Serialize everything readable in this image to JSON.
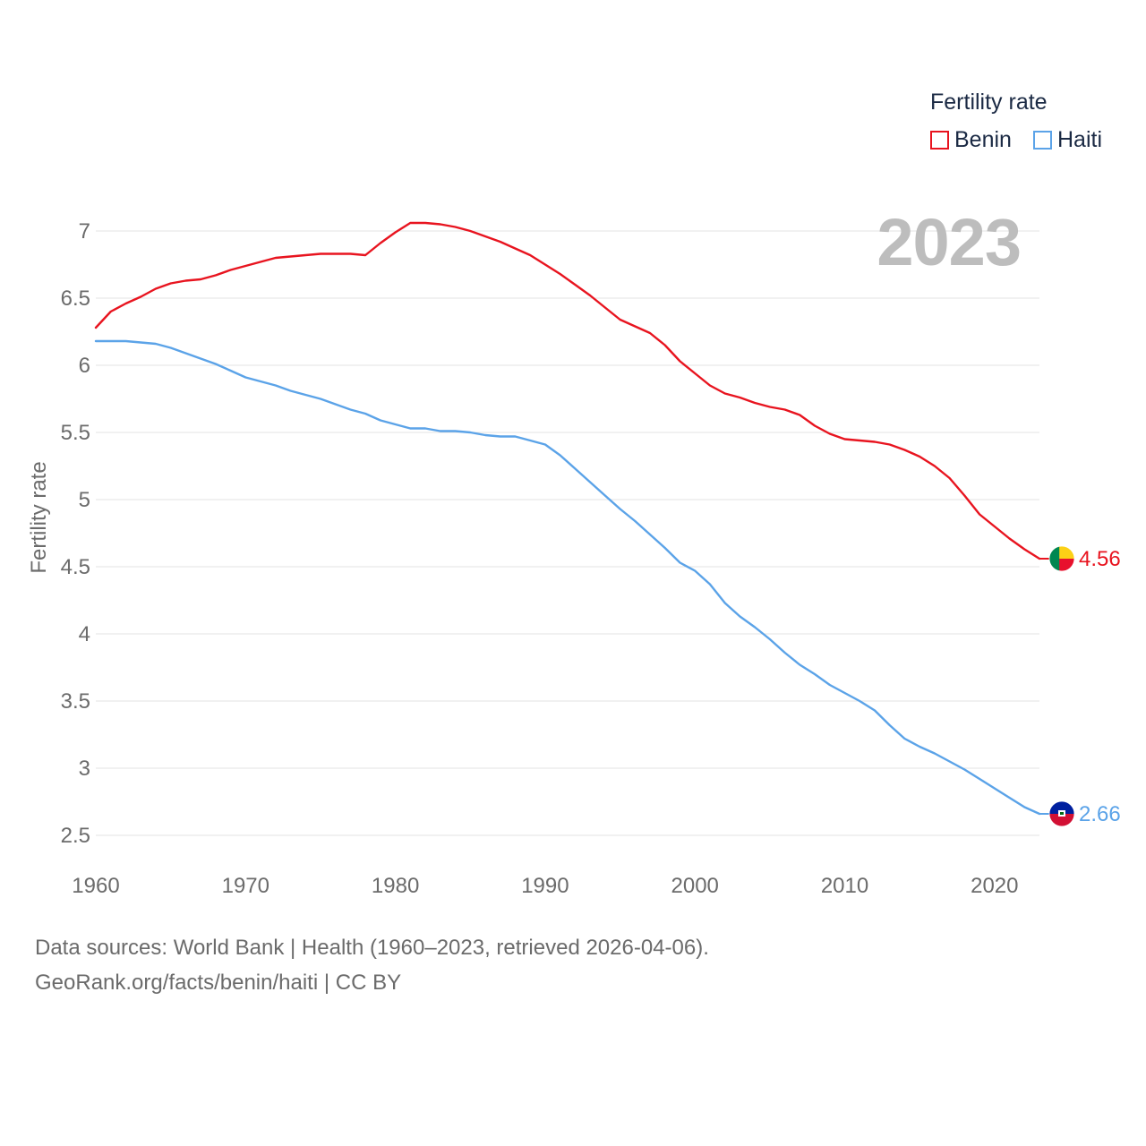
{
  "chart_data": {
    "type": "line",
    "ylabel": "Fertility rate",
    "xlabel": "",
    "year_stamp": "2023",
    "legend_title": "Fertility rate",
    "xlim": [
      1960,
      2023
    ],
    "ylim": [
      2.5,
      7
    ],
    "x_ticks": [
      1960,
      1970,
      1980,
      1990,
      2000,
      2010,
      2020
    ],
    "y_ticks": [
      {
        "value": 2.5,
        "label": "2.5"
      },
      {
        "value": 3,
        "label": "3"
      },
      {
        "value": 3.5,
        "label": "3.5"
      },
      {
        "value": 4,
        "label": "4"
      },
      {
        "value": 4.5,
        "label": "4.5"
      },
      {
        "value": 5,
        "label": "5"
      },
      {
        "value": 5.5,
        "label": "5.5"
      },
      {
        "value": 6,
        "label": "6"
      },
      {
        "value": 6.5,
        "label": "6.5"
      },
      {
        "value": 7,
        "label": "7"
      }
    ],
    "grid": true,
    "x": [
      1960,
      1961,
      1962,
      1963,
      1964,
      1965,
      1966,
      1967,
      1968,
      1969,
      1970,
      1971,
      1972,
      1973,
      1974,
      1975,
      1976,
      1977,
      1978,
      1979,
      1980,
      1981,
      1982,
      1983,
      1984,
      1985,
      1986,
      1987,
      1988,
      1989,
      1990,
      1991,
      1992,
      1993,
      1994,
      1995,
      1996,
      1997,
      1998,
      1999,
      2000,
      2001,
      2002,
      2003,
      2004,
      2005,
      2006,
      2007,
      2008,
      2009,
      2010,
      2011,
      2012,
      2013,
      2014,
      2015,
      2016,
      2017,
      2018,
      2019,
      2020,
      2021,
      2022,
      2023
    ],
    "series": [
      {
        "name": "Benin",
        "color": "#e8141f",
        "end_label": "4.56",
        "flag": "benin",
        "values": [
          6.28,
          6.4,
          6.46,
          6.51,
          6.57,
          6.61,
          6.63,
          6.64,
          6.67,
          6.71,
          6.74,
          6.77,
          6.8,
          6.81,
          6.82,
          6.83,
          6.83,
          6.83,
          6.82,
          6.91,
          6.99,
          7.06,
          7.06,
          7.05,
          7.03,
          7.0,
          6.96,
          6.92,
          6.87,
          6.82,
          6.75,
          6.68,
          6.6,
          6.52,
          6.43,
          6.34,
          6.29,
          6.24,
          6.15,
          6.03,
          5.94,
          5.85,
          5.79,
          5.76,
          5.72,
          5.69,
          5.67,
          5.63,
          5.55,
          5.49,
          5.45,
          5.44,
          5.43,
          5.41,
          5.37,
          5.32,
          5.25,
          5.16,
          5.03,
          4.89,
          4.8,
          4.71,
          4.63,
          4.56
        ]
      },
      {
        "name": "Haiti",
        "color": "#5ba3e8",
        "end_label": "2.66",
        "flag": "haiti",
        "values": [
          6.18,
          6.18,
          6.18,
          6.17,
          6.16,
          6.13,
          6.09,
          6.05,
          6.01,
          5.96,
          5.91,
          5.88,
          5.85,
          5.81,
          5.78,
          5.75,
          5.71,
          5.67,
          5.64,
          5.59,
          5.56,
          5.53,
          5.53,
          5.51,
          5.51,
          5.5,
          5.48,
          5.47,
          5.47,
          5.44,
          5.41,
          5.33,
          5.23,
          5.13,
          5.03,
          4.93,
          4.84,
          4.74,
          4.64,
          4.53,
          4.47,
          4.37,
          4.23,
          4.13,
          4.05,
          3.96,
          3.86,
          3.77,
          3.7,
          3.62,
          3.56,
          3.5,
          3.43,
          3.32,
          3.22,
          3.16,
          3.11,
          3.05,
          2.99,
          2.92,
          2.85,
          2.78,
          2.71,
          2.66
        ]
      }
    ]
  },
  "footer": {
    "source_line": "Data sources: World Bank | Health (1960–2023, retrieved 2026-04-06).",
    "url_line": "GeoRank.org/facts/benin/haiti | CC BY"
  }
}
